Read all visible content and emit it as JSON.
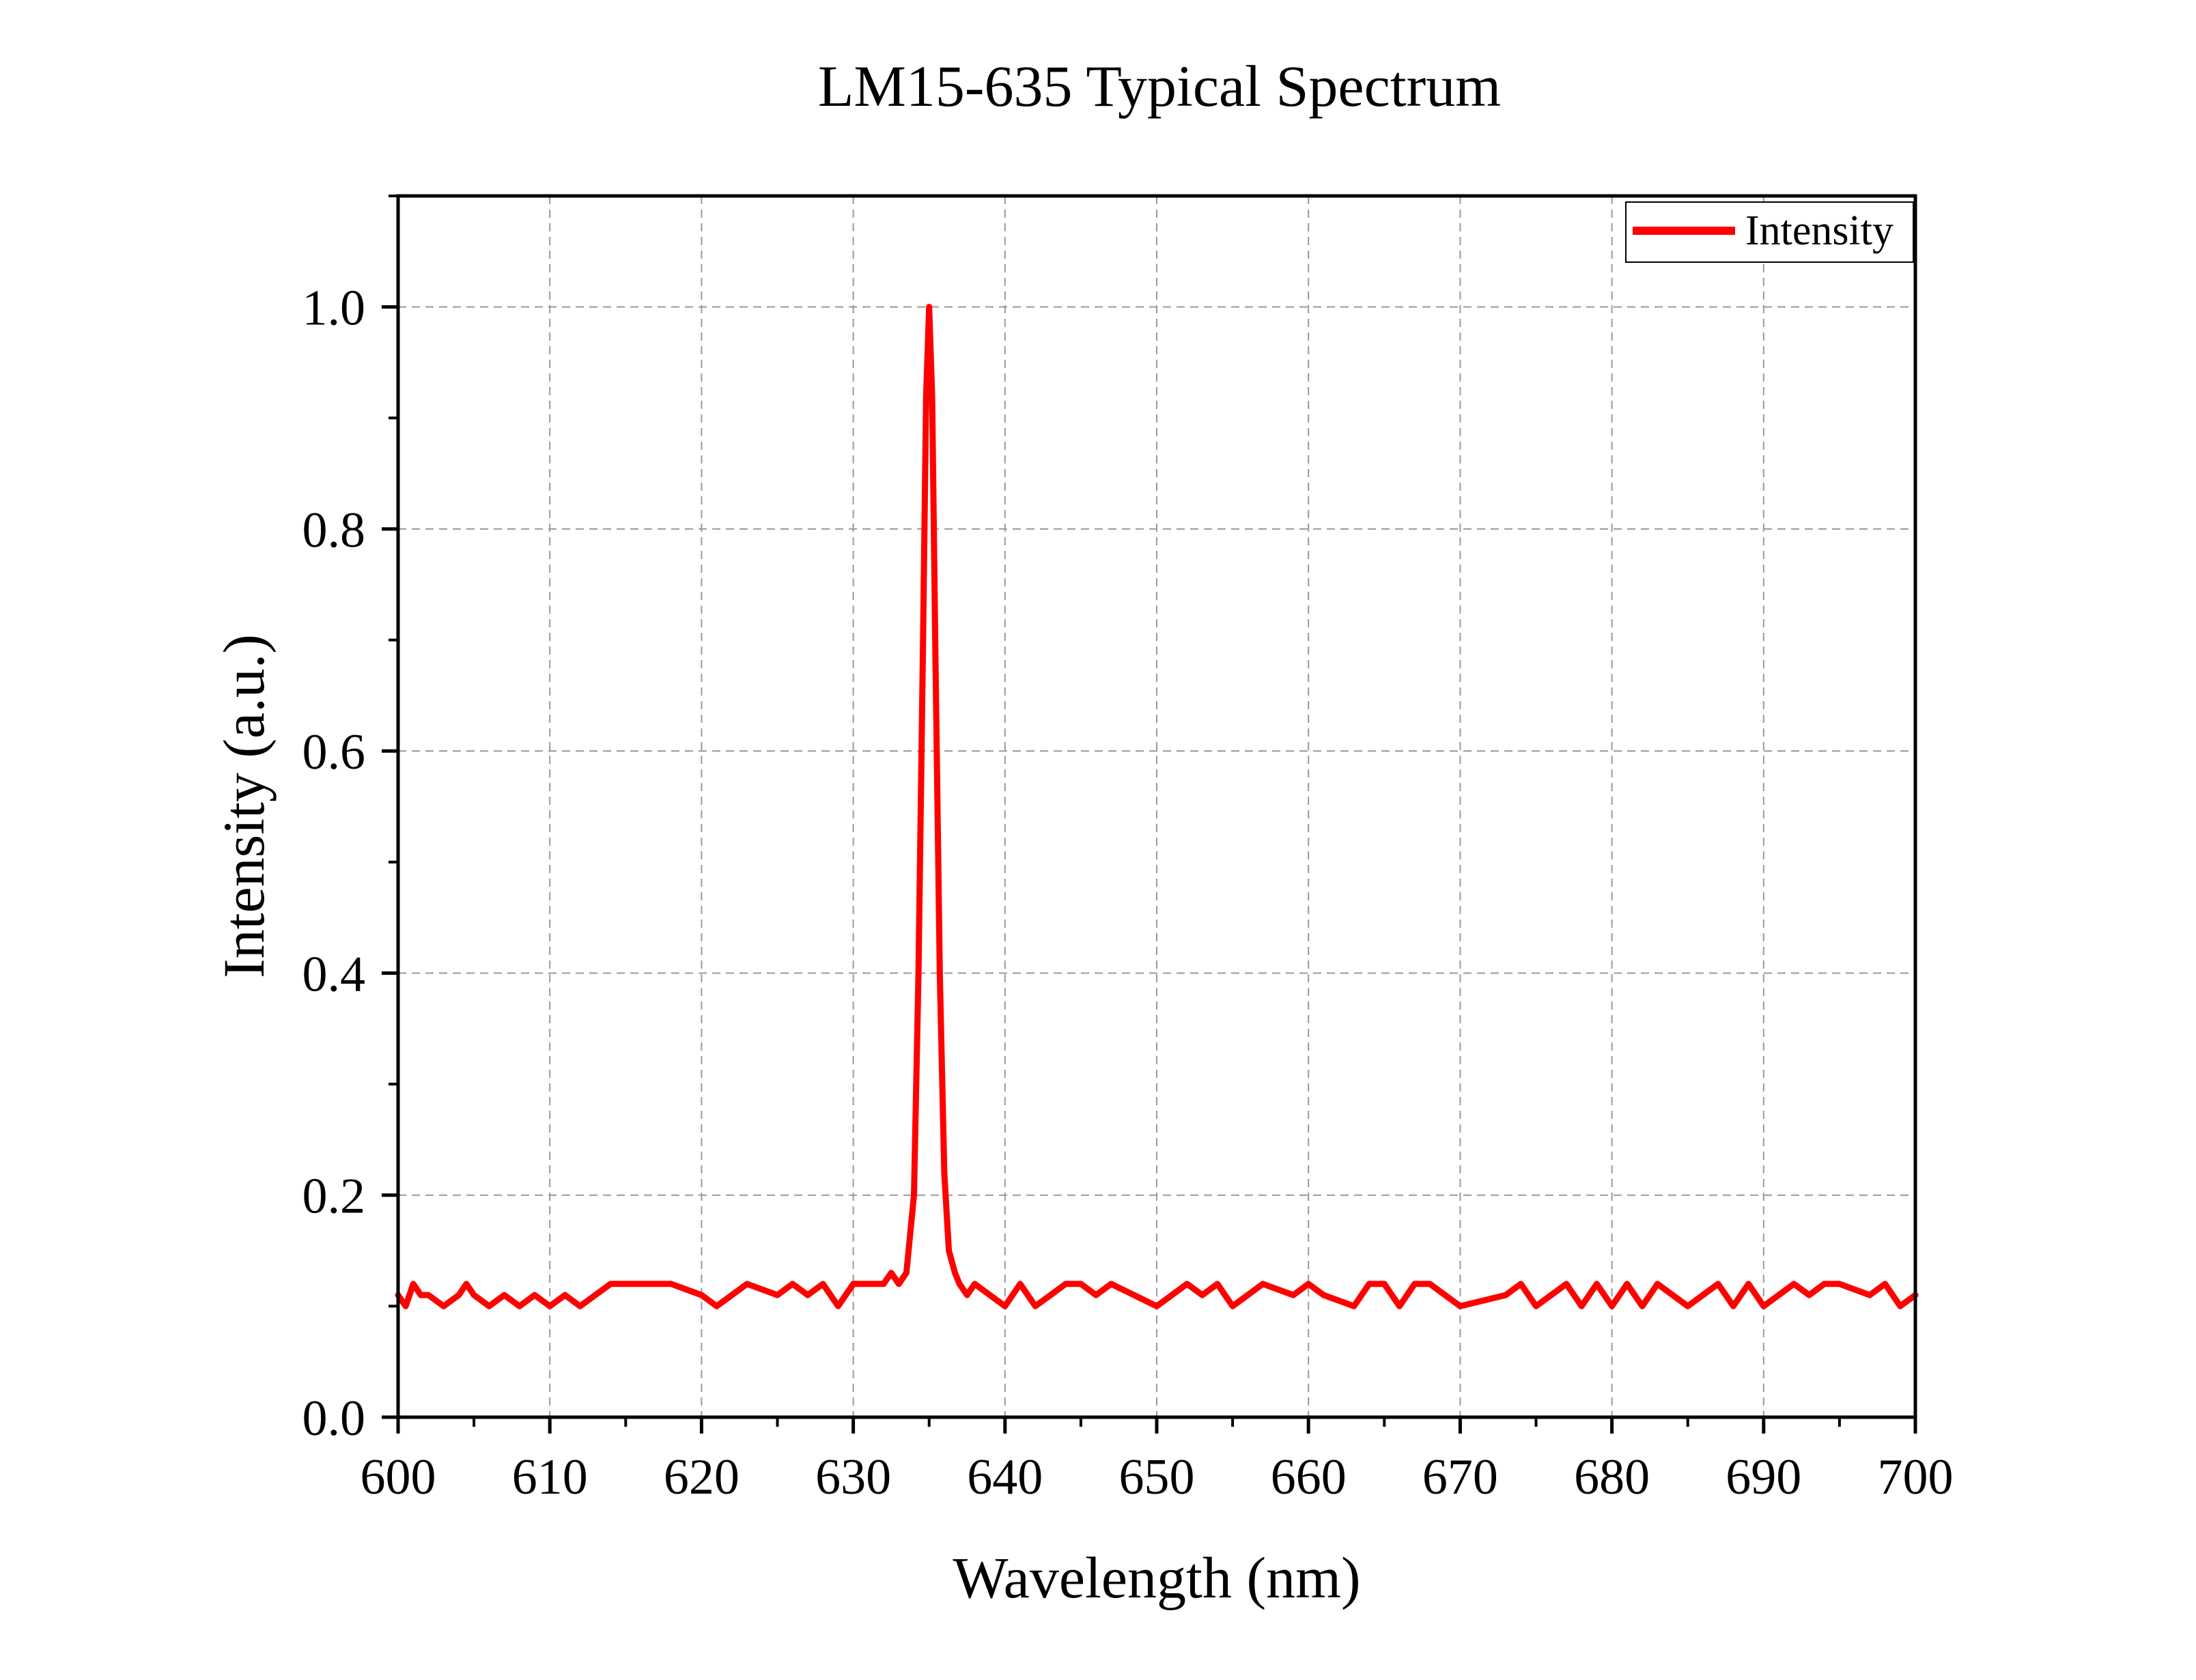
{
  "chart_data": {
    "type": "line",
    "title": "LM15-635 Typical Spectrum",
    "xlabel": "Wavelength (nm)",
    "ylabel": "Intensity (a.u.)",
    "xlim": [
      600,
      700
    ],
    "ylim": [
      0,
      1.1
    ],
    "x_ticks": [
      "600",
      "610",
      "620",
      "630",
      "640",
      "650",
      "660",
      "670",
      "680",
      "690",
      "700"
    ],
    "y_ticks": [
      "0.0",
      "0.2",
      "0.4",
      "0.6",
      "0.8",
      "1.0"
    ],
    "grid": true,
    "legend_position": "top-right",
    "series": [
      {
        "name": "Intensity",
        "color": "#ff0000",
        "baseline": 0.11,
        "peak": {
          "x": 635.0,
          "y": 1.0
        },
        "x": [
          600.0,
          600.5,
          601.0,
          601.5,
          602.0,
          603.0,
          604.0,
          604.5,
          605.0,
          606.0,
          607.0,
          608.0,
          609.0,
          610.0,
          611.0,
          612.0,
          614.0,
          616.0,
          618.0,
          620.0,
          621.0,
          622.0,
          623.0,
          625.0,
          626.0,
          627.0,
          628.0,
          629.0,
          630.0,
          631.0,
          632.0,
          632.5,
          633.0,
          633.5,
          634.0,
          634.3,
          634.6,
          634.8,
          635.0,
          635.2,
          635.4,
          635.7,
          636.0,
          636.3,
          636.7,
          637.0,
          637.5,
          638.0,
          640.0,
          641.0,
          642.0,
          643.0,
          644.0,
          645.0,
          646.0,
          647.0,
          650.0,
          652.0,
          653.0,
          654.0,
          655.0,
          657.0,
          659.0,
          660.0,
          661.0,
          663.0,
          664.0,
          665.0,
          666.0,
          667.0,
          668.0,
          670.0,
          673.0,
          674.0,
          675.0,
          677.0,
          678.0,
          679.0,
          680.0,
          681.0,
          682.0,
          683.0,
          685.0,
          687.0,
          688.0,
          689.0,
          690.0,
          692.0,
          693.0,
          694.0,
          695.0,
          697.0,
          698.0,
          699.0,
          700.0
        ],
        "values": [
          0.11,
          0.1,
          0.12,
          0.11,
          0.11,
          0.1,
          0.11,
          0.12,
          0.11,
          0.1,
          0.11,
          0.1,
          0.11,
          0.1,
          0.11,
          0.1,
          0.12,
          0.12,
          0.12,
          0.11,
          0.1,
          0.11,
          0.12,
          0.11,
          0.12,
          0.11,
          0.12,
          0.1,
          0.12,
          0.12,
          0.12,
          0.13,
          0.12,
          0.13,
          0.2,
          0.4,
          0.7,
          0.92,
          1.0,
          0.92,
          0.7,
          0.4,
          0.22,
          0.15,
          0.13,
          0.12,
          0.11,
          0.12,
          0.1,
          0.12,
          0.1,
          0.11,
          0.12,
          0.12,
          0.11,
          0.12,
          0.1,
          0.12,
          0.11,
          0.12,
          0.1,
          0.12,
          0.11,
          0.12,
          0.11,
          0.1,
          0.12,
          0.12,
          0.1,
          0.12,
          0.12,
          0.1,
          0.11,
          0.12,
          0.1,
          0.12,
          0.1,
          0.12,
          0.1,
          0.12,
          0.1,
          0.12,
          0.1,
          0.12,
          0.1,
          0.12,
          0.1,
          0.12,
          0.11,
          0.12,
          0.12,
          0.11,
          0.12,
          0.1,
          0.11
        ]
      }
    ]
  }
}
